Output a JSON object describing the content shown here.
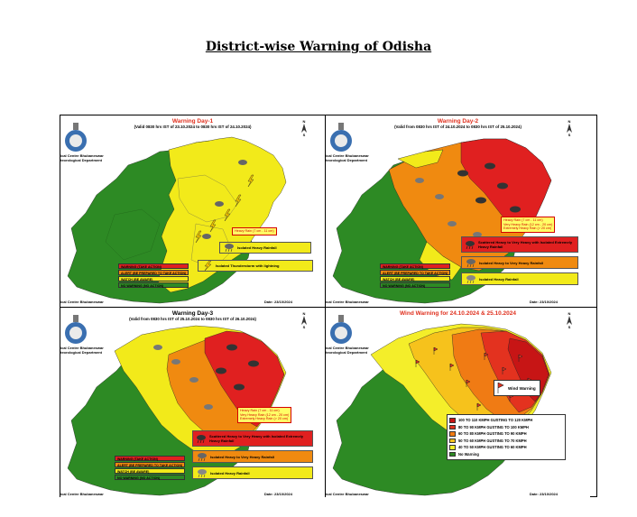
{
  "page": {
    "title": "District-wise Warning of Odisha"
  },
  "common": {
    "centre_line1": "ical Centre Bhubaneswar",
    "centre_line2": "teorological Department",
    "bottom_centre": "ical Centre Bhubaneswar",
    "north_label_top": "N",
    "north_label_bottom": "S"
  },
  "colors": {
    "red": "#e02020",
    "orange": "#f08a10",
    "yellow": "#f2ea1a",
    "green": "#2d8a24",
    "wind_100": "#c71515",
    "wind_80": "#e3321f",
    "wind_60": "#f07b14",
    "wind_50": "#f6c21c",
    "wind_40": "#f4ee2a",
    "wind_no": "#2d8a24",
    "title_red": "#e0301e"
  },
  "key": {
    "red": "WARNING (TAKE ACTION)",
    "orange": "ALERT (BE PREPARED TO TAKE ACTION)",
    "yellow": "WATCH (BE AWARE)",
    "green": "NO WARNING (NO ACTION)"
  },
  "day1": {
    "title": "Warning Day-1",
    "subtitle": "(Valid 0830 hrs IST of 23.10.2024 to 0830 hrs IST of 24.10.2024)",
    "rain_box": "Heavy Rain (7 cm - 11 cm)",
    "legend": [
      {
        "icon": "rain-cloud-icon",
        "label": "Isolated Heavy Rainfall"
      },
      {
        "icon": "lightning-icon",
        "label": "Isolated Thunderstorm with lightning"
      }
    ],
    "date": "Date: 23/10/2024"
  },
  "day2": {
    "title": "Warning Day-2",
    "subtitle": "(Valid from 0830 hrs IST of 24.10.2024 to 0830 hrs IST of 25.10.2024)",
    "rain_box": [
      "Heavy Rain (7 cm - 11 cm)",
      "Very Heavy Rain (12 cm - 20 cm)",
      "Extremely Heavy Rain (> 20 cm)"
    ],
    "legend": [
      {
        "icon": "heavy-rain-cloud-icon",
        "label": "Scattered Heavy to Very Heavy with Isolated Extremely Heavy Rainfall"
      },
      {
        "icon": "rain-cloud-icon",
        "label": "Isolated Heavy to Very Heavy Rainfall"
      },
      {
        "icon": "rain-cloud-icon",
        "label": "Isolated Heavy Rainfall"
      }
    ],
    "date": "Date: 23/10/2024"
  },
  "day3": {
    "title": "Warning Day-3",
    "subtitle": "(Valid from 0830 hrs IST of 25.10.2024 to 0830 hrs IST of 26.10.2024)",
    "rain_box": [
      "Heavy Rain (7 cm - 11 cm)",
      "Very Heavy Rain (12 cm - 20 cm)",
      "Extremely Heavy Rain (> 20 cm)"
    ],
    "legend": [
      {
        "icon": "heavy-rain-cloud-icon",
        "label": "Scattered Heavy to Very Heavy with Isolated Extremely Heavy Rainfall"
      },
      {
        "icon": "rain-cloud-icon",
        "label": "Isolated Heavy to Very Heavy Rainfall"
      },
      {
        "icon": "rain-cloud-icon",
        "label": "Isolated Heavy Rainfall"
      }
    ],
    "date": "Date: 23/10/2024"
  },
  "wind": {
    "title": "Wind Warning for 24.10.2024 & 25.10.2024",
    "box_label": "Wind Warning",
    "legend": [
      "100 TO 110 KMPH GUSTING TO 120 KMPH",
      "80 TO 90 KMPH GUSTING TO 100 KMPH",
      "60 TO 80 KMPH GUSTING TO 90 KMPH",
      "50 TO 60 KMPH GUSTING TO 70 KMPH",
      "40 TO 50 KMPH GUSTING TO 60 KMPH",
      "No Warning"
    ],
    "date": "Date: 23/10/2024"
  }
}
